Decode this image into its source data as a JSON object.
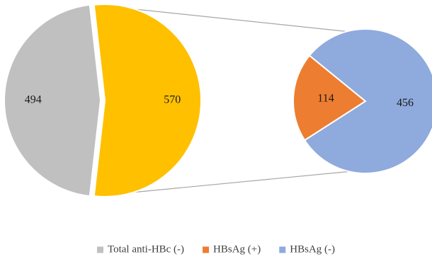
{
  "chart_data": {
    "type": "pie",
    "subtype": "pie-of-pie",
    "primary": {
      "slices": [
        {
          "key": "total_anti_hbc_neg",
          "label": "494",
          "value": 494,
          "color": "#c0c0c0"
        },
        {
          "key": "anti_hbc_pos_group",
          "label": "570",
          "value": 570,
          "color": "#ffc000"
        }
      ]
    },
    "secondary": {
      "breakdown_of": "anti_hbc_pos_group",
      "slices": [
        {
          "key": "hbsag_pos",
          "label": "114",
          "value": 114,
          "color": "#ed7d31"
        },
        {
          "key": "hbsag_neg",
          "label": "456",
          "value": 456,
          "color": "#8faadc"
        }
      ]
    },
    "legend": {
      "position": "bottom",
      "items": [
        {
          "label": "Total anti-HBc (-)",
          "color": "#c0c0c0"
        },
        {
          "label": "HBsAg (+)",
          "color": "#ed7d31"
        },
        {
          "label": "HBsAg (-)",
          "color": "#8faadc"
        }
      ]
    },
    "connector_color": "#a6a6a6"
  }
}
